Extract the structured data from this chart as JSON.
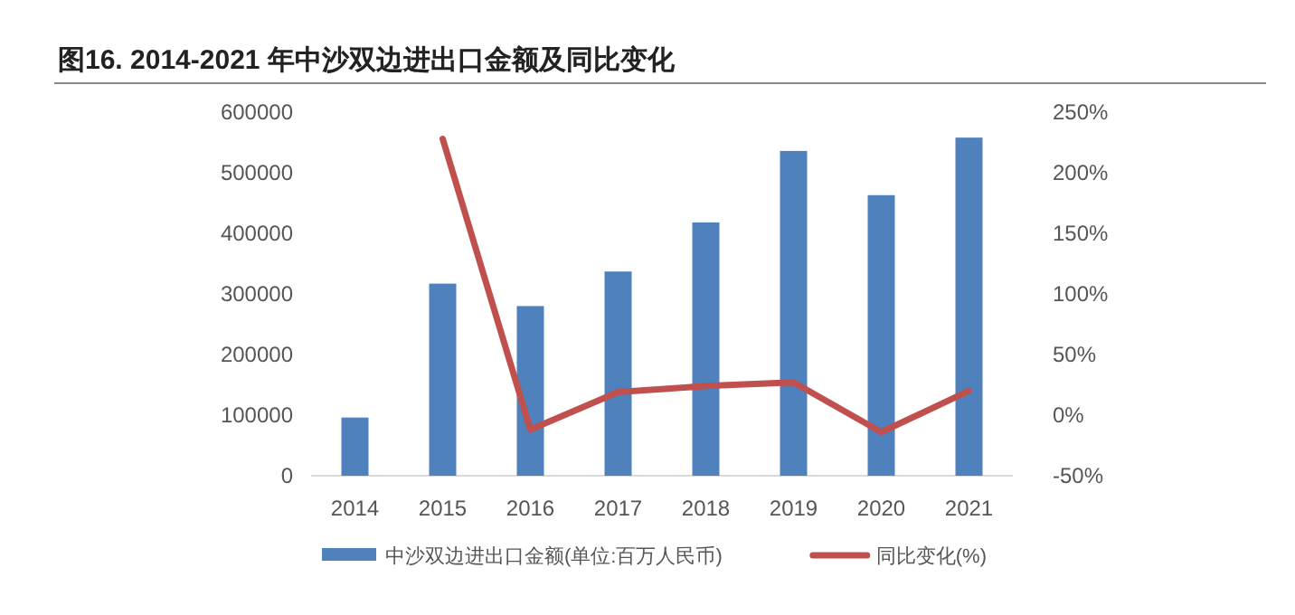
{
  "chart_data": {
    "type": "bar",
    "title": "图16. 2014-2021 年中沙双边进出口金额及同比变化",
    "categories": [
      "2014",
      "2015",
      "2016",
      "2017",
      "2018",
      "2019",
      "2020",
      "2021"
    ],
    "series": [
      {
        "name": "中沙双边进出口金额(单位:百万人民币)",
        "color": "#4f81bd",
        "values": [
          96000,
          317000,
          280000,
          337000,
          418000,
          536000,
          463000,
          558000
        ]
      },
      {
        "name": "同比变化(%)",
        "type": "line",
        "axis": "y2",
        "color": "#c0504d",
        "values": [
          null,
          228,
          -12,
          19,
          24,
          27,
          -14,
          20
        ]
      }
    ],
    "ylim": [
      0,
      600000
    ],
    "yticks": [
      0,
      100000,
      200000,
      300000,
      400000,
      500000,
      600000
    ],
    "y2lim": [
      -50,
      250
    ],
    "y2ticks": [
      {
        "value": -50,
        "label": "-50%"
      },
      {
        "value": 0,
        "label": "0%"
      },
      {
        "value": 50,
        "label": "50%"
      },
      {
        "value": 100,
        "label": "100%"
      },
      {
        "value": 150,
        "label": "150%"
      },
      {
        "value": 200,
        "label": "200%"
      },
      {
        "value": 250,
        "label": "250%"
      }
    ],
    "grid": false,
    "legend": "bottom",
    "marker": "none"
  }
}
